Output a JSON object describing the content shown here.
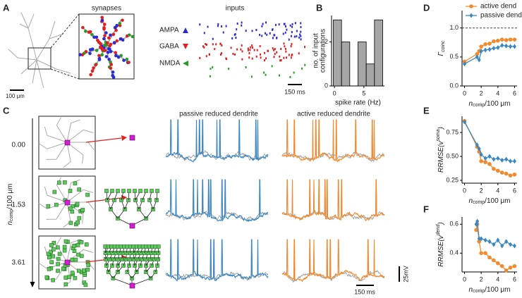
{
  "panel_a": {
    "letter": "A",
    "synapses_title": "synapses",
    "inputs_title": "inputs",
    "scale_bar": "100 μm",
    "receptors": [
      "AMPA",
      "GABA",
      "NMDA"
    ],
    "time_bar": "150 ms"
  },
  "panel_b": {
    "letter": "B"
  },
  "panel_c": {
    "letter": "C",
    "passive_title": "passive reduced dendrite",
    "active_title": "active reduced dendrite",
    "rows": [
      "0.00",
      "1.53",
      "3.61"
    ],
    "axis_label": {
      "n": "n",
      "sub": "comp",
      "rest": "/100 μm"
    },
    "voltage_bar": "25mV",
    "time_bar": "150 ms"
  },
  "panel_d": {
    "letter": "D"
  },
  "panel_e": {
    "letter": "E"
  },
  "panel_f": {
    "letter": "F"
  },
  "chart_data": [
    {
      "type": "histogram",
      "y_label": [
        "no. of input",
        "configurations"
      ],
      "x_label": "spike rate (Hz)",
      "bins": [
        -0.2,
        1.2,
        2.6,
        4.0,
        5.4,
        6.8,
        8.2
      ],
      "counts": [
        3,
        2,
        0,
        2,
        1,
        3
      ],
      "color": "#a6a6a6",
      "xlim": [
        -0.5,
        8.5
      ],
      "xticks": [
        0,
        5
      ],
      "ylim": [
        0,
        3.2
      ],
      "yticks": [
        0,
        2
      ]
    },
    {
      "type": "line",
      "y_label": {
        "main": "Γ",
        "sub": "coinc"
      },
      "x_label": {
        "n": "n",
        "sub": "comp",
        "rest": "/100 μm"
      },
      "reference_line": 1.0,
      "x": [
        0,
        1.5,
        1.75,
        2,
        2.5,
        3,
        3.5,
        4,
        4.5,
        5,
        5.5,
        6
      ],
      "series": [
        {
          "name": "active dend",
          "color": "#f28a2e",
          "marker": "circle",
          "values": [
            0.42,
            0.55,
            0.6,
            0.68,
            0.72,
            0.73,
            0.77,
            0.78,
            0.8,
            0.79,
            0.8,
            0.8
          ]
        },
        {
          "name": "passive dend",
          "color": "#3a87c2",
          "marker": "diamond",
          "values": [
            0.38,
            0.5,
            0.45,
            0.6,
            0.62,
            0.63,
            0.65,
            0.66,
            0.7,
            0.69,
            0.68,
            0.68
          ]
        }
      ],
      "xlim": [
        -0.3,
        6.3
      ],
      "xticks": [
        0,
        2,
        4,
        6
      ],
      "ylim": [
        0,
        1.3
      ],
      "yticks": [
        {
          "value": 0,
          "label": "0.0"
        },
        {
          "value": 0.5,
          "label": "0.5"
        },
        {
          "value": 1,
          "label": "1.0"
        }
      ]
    },
    {
      "type": "line",
      "y_label": {
        "main": "RRMSE(v",
        "sup": "soma",
        "end": ")"
      },
      "x_label": {
        "n": "n",
        "sub": "comp",
        "rest": "/100 μm"
      },
      "x": [
        0,
        1.5,
        1.75,
        2,
        2.5,
        3,
        3.5,
        4,
        4.5,
        5,
        5.5,
        6
      ],
      "series": [
        {
          "name": "active dend",
          "color": "#f28a2e",
          "marker": "circle",
          "values": [
            0.87,
            0.6,
            0.55,
            0.45,
            0.44,
            0.42,
            0.37,
            0.35,
            0.33,
            0.32,
            0.3,
            0.31
          ]
        },
        {
          "name": "passive dend",
          "color": "#3a87c2",
          "marker": "diamond",
          "values": [
            0.86,
            0.62,
            0.58,
            0.52,
            0.48,
            0.5,
            0.47,
            0.48,
            0.46,
            0.47,
            0.45,
            0.45
          ]
        }
      ],
      "xlim": [
        -0.3,
        6.3
      ],
      "xticks": [
        0,
        2,
        4,
        6
      ],
      "ylim": [
        0.22,
        0.92
      ],
      "yticks": [
        0.25,
        {
          "value": 0.5,
          "label": "0.50"
        },
        0.75
      ]
    },
    {
      "type": "line",
      "y_label": {
        "main": "RRMSE(v",
        "sup": "dend",
        "end": ")"
      },
      "x_label": {
        "n": "n",
        "sub": "comp",
        "rest": "/100 μm"
      },
      "x": [
        1.4,
        1.53,
        1.75,
        2,
        2.5,
        3,
        3.5,
        4,
        4.5,
        5,
        5.5,
        6
      ],
      "series": [
        {
          "name": "active dend",
          "color": "#f28a2e",
          "marker": "circle",
          "values": [
            0.56,
            0.6,
            0.48,
            0.4,
            0.4,
            0.37,
            0.35,
            0.33,
            0.31,
            0.28,
            0.3,
            0.31
          ]
        },
        {
          "name": "passive dend",
          "color": "#3a87c2",
          "marker": "diamond",
          "values": [
            0.6,
            0.62,
            0.5,
            0.5,
            0.49,
            0.48,
            0.46,
            0.49,
            0.45,
            0.48,
            0.46,
            0.45
          ]
        }
      ],
      "xlim": [
        -0.3,
        6.3
      ],
      "xticks": [
        0,
        2,
        4,
        6
      ],
      "ylim": [
        0.27,
        0.65
      ],
      "yticks": [
        0.4,
        0.6
      ]
    }
  ]
}
